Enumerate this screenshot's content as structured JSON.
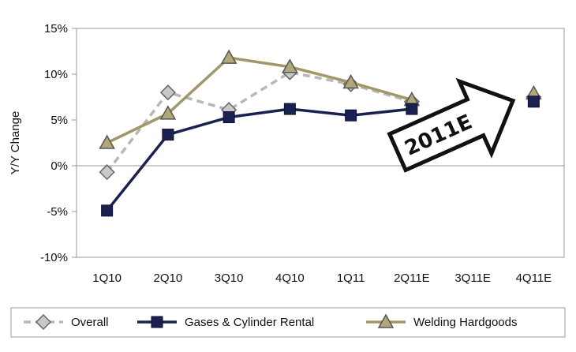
{
  "chart_data": {
    "type": "line",
    "categories": [
      "1Q10",
      "2Q10",
      "3Q10",
      "4Q10",
      "1Q11",
      "2Q11E",
      "3Q11E",
      "4Q11E"
    ],
    "ylabel": "Y/Y Change",
    "xlabel": "",
    "title": "",
    "ylim": [
      -10,
      15
    ],
    "yticks": [
      -10,
      -5,
      0,
      5,
      10,
      15
    ],
    "ytick_labels": [
      "-10%",
      "-5%",
      "0%",
      "5%",
      "10%",
      "15%"
    ],
    "grid": false,
    "legend_position": "bottom",
    "series": [
      {
        "name": "Overall",
        "values": [
          -0.7,
          8.0,
          6.1,
          10.2,
          8.9,
          7.0,
          null,
          7.5
        ],
        "color": "#b8b8b8",
        "dash": true,
        "marker": "diamond",
        "marker_fill": "#c8c8c8"
      },
      {
        "name": "Gases & Cylinder Rental",
        "values": [
          -4.9,
          3.4,
          5.3,
          6.2,
          5.5,
          6.2,
          null,
          7.0
        ],
        "color": "#1a2150",
        "dash": false,
        "marker": "square",
        "marker_fill": "#1a2150"
      },
      {
        "name": "Welding Hardgoods",
        "values": [
          2.5,
          5.7,
          11.8,
          10.8,
          9.1,
          7.2,
          null,
          7.9
        ],
        "color": "#a09868",
        "dash": false,
        "marker": "triangle",
        "marker_fill": "#b0a878"
      }
    ],
    "annotations": [
      {
        "text": "2011E",
        "shape": "arrow"
      }
    ]
  }
}
